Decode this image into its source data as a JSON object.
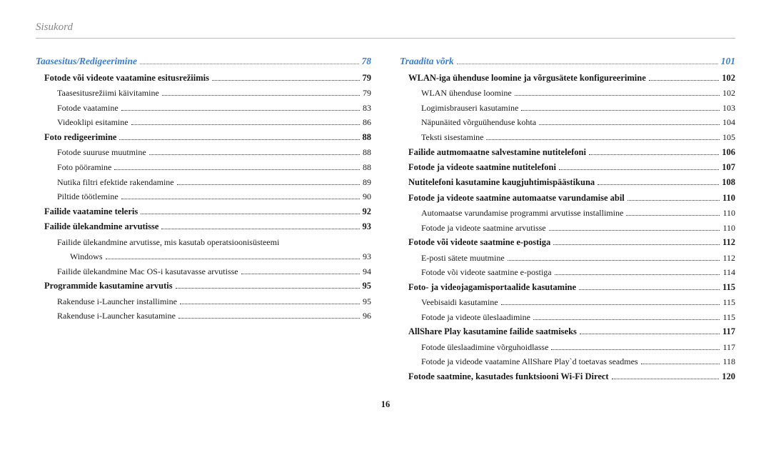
{
  "header": "Sisukord",
  "pageNumber": "16",
  "left": [
    {
      "level": "section",
      "label": "Taasesitus/Redigeerimine",
      "page": "78"
    },
    {
      "level": "l1",
      "label": "Fotode või videote vaatamine esitusrežiimis",
      "page": "79"
    },
    {
      "level": "l2",
      "label": "Taasesitusrežiimi käivitamine",
      "page": "79"
    },
    {
      "level": "l2",
      "label": "Fotode vaatamine",
      "page": "83"
    },
    {
      "level": "l2",
      "label": "Videoklipi esitamine",
      "page": "86"
    },
    {
      "level": "l1",
      "label": "Foto redigeerimine",
      "page": "88"
    },
    {
      "level": "l2",
      "label": "Fotode suuruse muutmine",
      "page": "88"
    },
    {
      "level": "l2",
      "label": "Foto pööramine",
      "page": "88"
    },
    {
      "level": "l2",
      "label": "Nutika filtri efektide rakendamine",
      "page": "89"
    },
    {
      "level": "l2",
      "label": "Piltide töötlemine",
      "page": "90"
    },
    {
      "level": "l1",
      "label": "Failide vaatamine teleris",
      "page": "92"
    },
    {
      "level": "l1",
      "label": "Failide ülekandmine arvutisse",
      "page": "93"
    },
    {
      "level": "l2-wrap",
      "label": "Failide ülekandmine arvutisse, mis kasutab operatsioonisüsteemi",
      "page": ""
    },
    {
      "level": "l3",
      "label": "Windows",
      "page": "93"
    },
    {
      "level": "l2",
      "label": "Failide ülekandmine Mac OS-i kasutavasse arvutisse",
      "page": "94"
    },
    {
      "level": "l1",
      "label": "Programmide kasutamine arvutis",
      "page": "95"
    },
    {
      "level": "l2",
      "label": "Rakenduse i-Launcher installimine",
      "page": "95"
    },
    {
      "level": "l2",
      "label": "Rakenduse i-Launcher kasutamine",
      "page": "96"
    }
  ],
  "right": [
    {
      "level": "section",
      "label": "Traadita võrk",
      "page": "101"
    },
    {
      "level": "l1",
      "label": "WLAN-iga ühenduse loomine ja võrgusätete konfigureerimine",
      "page": "102"
    },
    {
      "level": "l2",
      "label": "WLAN ühenduse loomine",
      "page": "102"
    },
    {
      "level": "l2",
      "label": "Logimisbrauseri kasutamine",
      "page": "103"
    },
    {
      "level": "l2",
      "label": "Näpunäited võrguühenduse kohta",
      "page": "104"
    },
    {
      "level": "l2",
      "label": "Teksti sisestamine",
      "page": "105"
    },
    {
      "level": "l1",
      "label": "Failide autmomaatne salvestamine nutitelefoni",
      "page": "106"
    },
    {
      "level": "l1",
      "label": "Fotode ja videote saatmine nutitelefoni",
      "page": "107"
    },
    {
      "level": "l1",
      "label": "Nutitelefoni kasutamine kaugjuhtimispäästikuna",
      "page": "108"
    },
    {
      "level": "l1",
      "label": "Fotode ja videote saatmine automaatse varundamise abil",
      "page": "110"
    },
    {
      "level": "l2",
      "label": "Automaatse varundamise programmi arvutisse installimine",
      "page": "110"
    },
    {
      "level": "l2",
      "label": "Fotode ja videote saatmine arvutisse",
      "page": "110"
    },
    {
      "level": "l1",
      "label": "Fotode või videote saatmine e-postiga",
      "page": "112"
    },
    {
      "level": "l2",
      "label": "E-posti sätete muutmine",
      "page": "112"
    },
    {
      "level": "l2",
      "label": "Fotode või videote saatmine e-postiga",
      "page": "114"
    },
    {
      "level": "l1",
      "label": "Foto- ja videojagamisportaalide kasutamine",
      "page": "115"
    },
    {
      "level": "l2",
      "label": "Veebisaidi kasutamine",
      "page": "115"
    },
    {
      "level": "l2",
      "label": "Fotode ja videote üleslaadimine",
      "page": "115"
    },
    {
      "level": "l1",
      "label": "AllShare Play kasutamine failide saatmiseks",
      "page": "117"
    },
    {
      "level": "l2",
      "label": "Fotode üleslaadimine võrguhoidlasse",
      "page": "117"
    },
    {
      "level": "l2",
      "label": "Fotode ja videode vaatamine AllShare Play`d toetavas seadmes",
      "page": "118"
    },
    {
      "level": "l1",
      "label": "Fotode saatmine, kasutades funktsiooni Wi-Fi Direct",
      "page": "120"
    }
  ]
}
